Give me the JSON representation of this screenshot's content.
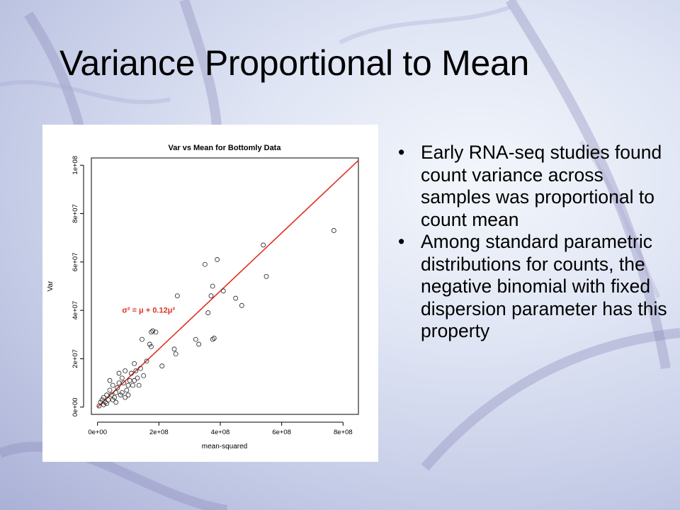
{
  "slide": {
    "title": "Variance Proportional to Mean",
    "bullets": [
      "Early RNA-seq studies found count variance across samples was proportional to count mean",
      "Among standard parametric distributions for counts, the negative binomial with fixed dispersion parameter has this property"
    ]
  },
  "chart_data": {
    "type": "scatter",
    "title": "Var vs Mean for Bottomly Data",
    "xlabel": "mean-squared",
    "ylabel": "Var",
    "xlim": [
      -20000000.0,
      850000000.0
    ],
    "ylim": [
      -3000000.0,
      103000000.0
    ],
    "xticks": [
      0,
      200000000,
      400000000,
      600000000,
      800000000
    ],
    "xtick_labels": [
      "0e+00",
      "2e+08",
      "4e+08",
      "6e+08",
      "8e+08"
    ],
    "yticks": [
      0,
      20000000,
      40000000,
      60000000,
      80000000,
      100000000
    ],
    "ytick_labels": [
      "0e+00",
      "2e+07",
      "4e+07",
      "6e+07",
      "8e+07",
      "1e+08"
    ],
    "grid": false,
    "point_color": "#222222",
    "fit_line": {
      "intercept": 0,
      "slope": 0.12,
      "color": "#e03020"
    },
    "annotation": {
      "text": "σ² = μ + 0.12μ²",
      "x": 80000000,
      "y": 39000000,
      "color": "#e03020"
    },
    "points": [
      [
        20000000.0,
        1000000.0
      ],
      [
        50000000.0,
        3000000.0
      ],
      [
        80000000.0,
        6000000.0
      ],
      [
        100000000.0,
        9000000.0
      ],
      [
        120000000.0,
        11000000.0
      ],
      [
        30000000.0,
        5000000.0
      ],
      [
        60000000.0,
        2000000.0
      ],
      [
        90000000.0,
        4000000.0
      ],
      [
        110000000.0,
        14000000.0
      ],
      [
        40000000.0,
        7000000.0
      ],
      [
        70000000.0,
        10000000.0
      ],
      [
        130000000.0,
        12000000.0
      ],
      [
        10000000.0,
        2000000.0
      ],
      [
        50000000.0,
        9000000.0
      ],
      [
        80000000.0,
        12000000.0
      ],
      [
        100000000.0,
        5000000.0
      ],
      [
        35000000.0,
        3000000.0
      ],
      [
        60000000.0,
        6000000.0
      ],
      [
        20000000.0,
        4000000.0
      ],
      [
        45000000.0,
        5000000.0
      ],
      [
        15000000.0,
        3000000.0
      ],
      [
        55000000.0,
        4000000.0
      ],
      [
        25000000.0,
        2000000.0
      ],
      [
        65000000.0,
        8000000.0
      ],
      [
        75000000.0,
        5000000.0
      ],
      [
        85000000.0,
        10000000.0
      ],
      [
        95000000.0,
        7000000.0
      ],
      [
        105000000.0,
        11000000.0
      ],
      [
        5000000.0,
        500000.0
      ],
      [
        30000000.0,
        1500000.0
      ],
      [
        115000000.0,
        9000000.0
      ],
      [
        125000000.0,
        15000000.0
      ],
      [
        40000000.0,
        11000000.0
      ],
      [
        70000000.0,
        14000000.0
      ],
      [
        140000000.0,
        16000000.0
      ],
      [
        150000000.0,
        13000000.0
      ],
      [
        160000000.0,
        19000000.0
      ],
      [
        90000000.0,
        15000000.0
      ],
      [
        120000000.0,
        18000000.0
      ],
      [
        135000000.0,
        9000000.0
      ],
      [
        145000000.0,
        28000000.0
      ],
      [
        170000000.0,
        26000000.0
      ],
      [
        175000000.0,
        31000000.0
      ],
      [
        180000000.0,
        31500000.0
      ],
      [
        190000000.0,
        31000000.0
      ],
      [
        175000000.0,
        25000000.0
      ],
      [
        210000000.0,
        17000000.0
      ],
      [
        250000000.0,
        24000000.0
      ],
      [
        255000000.0,
        22000000.0
      ],
      [
        260000000.0,
        46000000.0
      ],
      [
        320000000.0,
        28000000.0
      ],
      [
        330000000.0,
        26000000.0
      ],
      [
        350000000.0,
        59000000.0
      ],
      [
        360000000.0,
        39000000.0
      ],
      [
        370000000.0,
        46000000.0
      ],
      [
        375000000.0,
        50000000.0
      ],
      [
        375000000.0,
        28000000.0
      ],
      [
        380000000.0,
        28500000.0
      ],
      [
        390000000.0,
        61000000.0
      ],
      [
        410000000.0,
        48000000.0
      ],
      [
        450000000.0,
        45000000.0
      ],
      [
        470000000.0,
        42000000.0
      ],
      [
        540000000.0,
        67000000.0
      ],
      [
        550000000.0,
        54000000.0
      ],
      [
        770000000.0,
        73000000.0
      ]
    ]
  }
}
